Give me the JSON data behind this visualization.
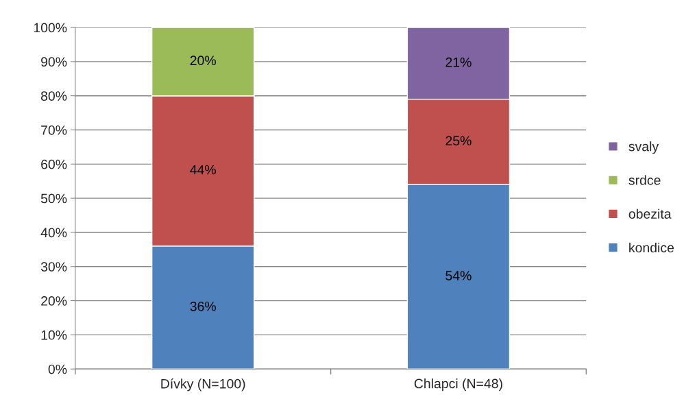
{
  "chart_data": {
    "type": "bar",
    "stacked": true,
    "categories": [
      "Dívky (N=100)",
      "Chlapci (N=48)"
    ],
    "series": [
      {
        "name": "kondice",
        "color": "#4f81bd",
        "values": [
          36,
          54
        ],
        "value_labels": [
          "36%",
          "54%"
        ]
      },
      {
        "name": "obezita",
        "color": "#c0504d",
        "values": [
          44,
          25
        ],
        "value_labels": [
          "44%",
          "25%"
        ]
      },
      {
        "name": "srdce",
        "color": "#9bbb59",
        "values": [
          20,
          null
        ],
        "value_labels": [
          "20%",
          null
        ]
      },
      {
        "name": "svaly",
        "color": "#8064a2",
        "values": [
          null,
          21
        ],
        "value_labels": [
          null,
          "21%"
        ]
      }
    ],
    "ylim": [
      0,
      100
    ],
    "yticks": [
      {
        "value": 0,
        "label": "0%"
      },
      {
        "value": 10,
        "label": "10%"
      },
      {
        "value": 20,
        "label": "20%"
      },
      {
        "value": 30,
        "label": "30%"
      },
      {
        "value": 40,
        "label": "40%"
      },
      {
        "value": 50,
        "label": "50%"
      },
      {
        "value": 60,
        "label": "60%"
      },
      {
        "value": 70,
        "label": "70%"
      },
      {
        "value": 80,
        "label": "80%"
      },
      {
        "value": 90,
        "label": "90%"
      },
      {
        "value": 100,
        "label": "100%"
      }
    ],
    "grid": "y",
    "legend": "right"
  }
}
